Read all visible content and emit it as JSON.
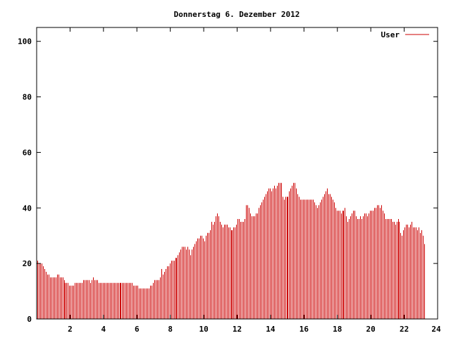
{
  "chart_data": {
    "type": "bar",
    "title": "Donnerstag 6. Dezember 2012",
    "xlabel": "",
    "ylabel": "",
    "xlim": [
      0,
      24
    ],
    "ylim": [
      0,
      105
    ],
    "x_ticks": [
      "2",
      "4",
      "6",
      "8",
      "10",
      "12",
      "14",
      "16",
      "18",
      "20",
      "22",
      "24"
    ],
    "y_ticks": [
      "0",
      "20",
      "40",
      "60",
      "80",
      "100"
    ],
    "legend_position": "top-right",
    "grid": false,
    "color": "#cc0000",
    "series": [
      {
        "name": "User",
        "x_start": 0,
        "x_step": 0.0833,
        "values": [
          21,
          20,
          20,
          20,
          19,
          18,
          17,
          16,
          16,
          15,
          15,
          15,
          15,
          15,
          16,
          16,
          15,
          15,
          15,
          14,
          13,
          13,
          13,
          12,
          12,
          12,
          12,
          13,
          13,
          13,
          13,
          13,
          13,
          14,
          14,
          14,
          14,
          14,
          13,
          14,
          15,
          14,
          14,
          14,
          13,
          13,
          13,
          13,
          13,
          13,
          13,
          13,
          13,
          13,
          13,
          13,
          13,
          13,
          13,
          13,
          13,
          13,
          13,
          13,
          13,
          13,
          13,
          13,
          13,
          12,
          12,
          12,
          12,
          11,
          11,
          11,
          11,
          11,
          11,
          11,
          11,
          12,
          12,
          13,
          14,
          14,
          14,
          14,
          15,
          18,
          16,
          17,
          18,
          19,
          19,
          20,
          21,
          21,
          21,
          22,
          22,
          23,
          24,
          25,
          26,
          26,
          26,
          25,
          26,
          25,
          23,
          25,
          26,
          27,
          28,
          29,
          29,
          30,
          30,
          29,
          28,
          30,
          31,
          31,
          32,
          35,
          34,
          35,
          37,
          38,
          37,
          35,
          34,
          33,
          34,
          34,
          34,
          33,
          33,
          32,
          32,
          33,
          33,
          34,
          36,
          36,
          35,
          35,
          35,
          36,
          41,
          41,
          40,
          38,
          37,
          37,
          37,
          38,
          38,
          40,
          41,
          42,
          43,
          44,
          45,
          46,
          47,
          47,
          46,
          47,
          48,
          47,
          48,
          49,
          49,
          49,
          44,
          43,
          44,
          44,
          44,
          46,
          47,
          48,
          49,
          49,
          47,
          45,
          44,
          43,
          43,
          43,
          43,
          43,
          43,
          43,
          43,
          43,
          43,
          42,
          41,
          40,
          41,
          42,
          43,
          44,
          45,
          46,
          47,
          45,
          45,
          44,
          43,
          42,
          40,
          39,
          39,
          39,
          38,
          39,
          39,
          40,
          37,
          35,
          36,
          37,
          38,
          39,
          39,
          37,
          36,
          36,
          37,
          36,
          37,
          38,
          38,
          37,
          38,
          39,
          39,
          39,
          40,
          40,
          41,
          41,
          40,
          41,
          39,
          38,
          36,
          36,
          36,
          36,
          36,
          35,
          35,
          34,
          35,
          36,
          35,
          31,
          30,
          32,
          33,
          34,
          34,
          33,
          34,
          35,
          33,
          33,
          33,
          32,
          33,
          31,
          32,
          30,
          27
        ]
      }
    ]
  }
}
